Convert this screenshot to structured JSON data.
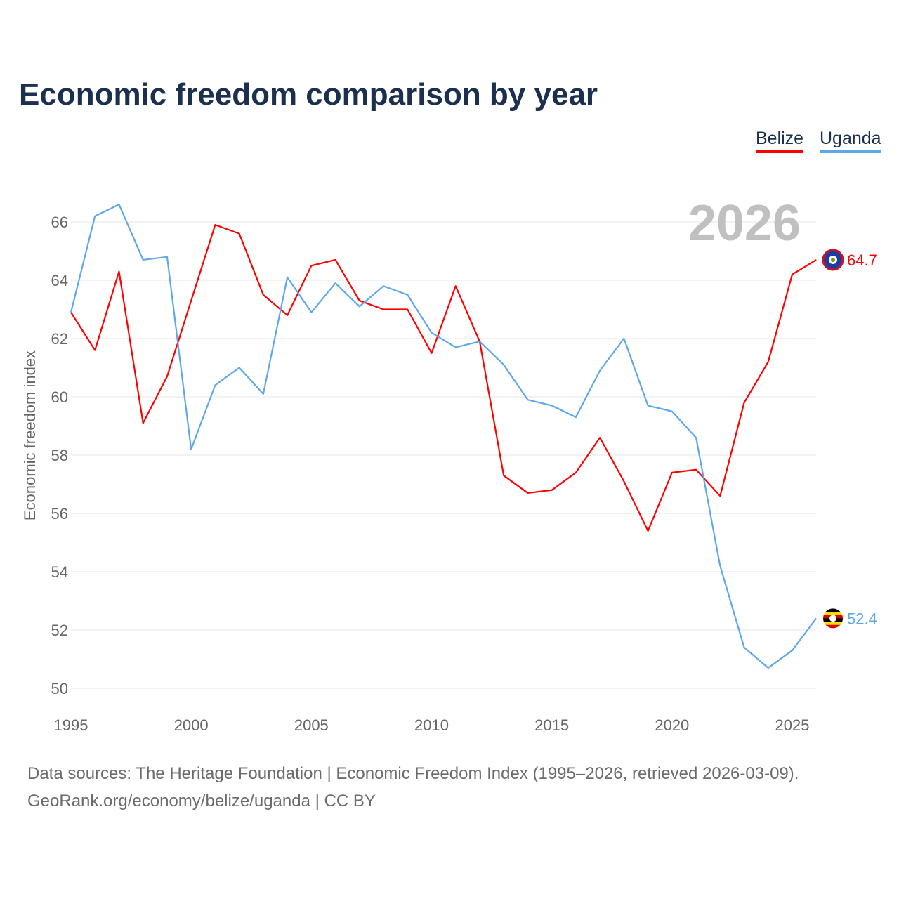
{
  "chart_data": {
    "type": "line",
    "title": "Economic freedom comparison by year",
    "xlabel": "",
    "ylabel": "Economic freedom index",
    "xlim": [
      1995,
      2026
    ],
    "ylim": [
      50,
      67
    ],
    "x_ticks": [
      "1995",
      "2000",
      "2005",
      "2010",
      "2015",
      "2020",
      "2025"
    ],
    "y_ticks": [
      "50",
      "52",
      "54",
      "56",
      "58",
      "60",
      "62",
      "64",
      "66"
    ],
    "grid": true,
    "legend_placement": "top-right",
    "year_watermark": "2026",
    "x": [
      1995,
      1996,
      1997,
      1998,
      1999,
      2000,
      2001,
      2002,
      2003,
      2004,
      2005,
      2006,
      2007,
      2008,
      2009,
      2010,
      2011,
      2012,
      2013,
      2014,
      2015,
      2016,
      2017,
      2018,
      2019,
      2020,
      2021,
      2022,
      2023,
      2024,
      2025,
      2026
    ],
    "series": [
      {
        "name": "Belize",
        "color": "#ff0000",
        "end_label": "64.7",
        "values": [
          62.9,
          61.6,
          64.3,
          59.1,
          60.7,
          63.3,
          65.9,
          65.6,
          63.5,
          62.8,
          64.5,
          64.7,
          63.3,
          63.0,
          63.0,
          61.5,
          63.8,
          61.9,
          57.3,
          56.7,
          56.8,
          57.4,
          58.6,
          57.1,
          55.4,
          57.4,
          57.5,
          56.6,
          59.8,
          61.2,
          64.2,
          64.7
        ]
      },
      {
        "name": "Uganda",
        "color": "#5ea8ea",
        "end_label": "52.4",
        "values": [
          62.9,
          66.2,
          66.6,
          64.7,
          64.8,
          58.2,
          60.4,
          61.0,
          60.1,
          64.1,
          62.9,
          63.9,
          63.1,
          63.8,
          63.5,
          62.2,
          61.7,
          61.9,
          61.1,
          59.9,
          59.7,
          59.3,
          60.9,
          62.0,
          59.7,
          59.5,
          58.6,
          54.2,
          51.4,
          50.7,
          51.3,
          52.4
        ]
      }
    ]
  },
  "footer": {
    "line1": "Data sources: The Heritage Foundation | Economic Freedom Index (1995–2026, retrieved 2026-03-09).",
    "line2": "GeoRank.org/economy/belize/uganda | CC BY"
  }
}
